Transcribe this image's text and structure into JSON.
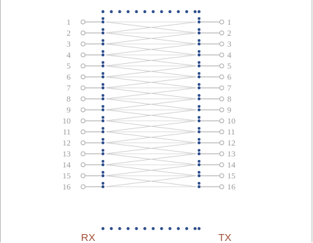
{
  "left_pins": [
    "1",
    "2",
    "3",
    "4",
    "5",
    "6",
    "7",
    "8",
    "9",
    "10",
    "11",
    "12",
    "13",
    "14",
    "15",
    "16"
  ],
  "right_pins": [
    "1",
    "2",
    "3",
    "4",
    "5",
    "6",
    "7",
    "8",
    "9",
    "10",
    "11",
    "12",
    "13",
    "14",
    "15",
    "16"
  ],
  "left_label": "RX",
  "right_label": "TX",
  "colors": {
    "pin_text": "#9a9a9a",
    "lead": "#a6a6a6",
    "dot": "#2e4f8d",
    "wire": "#cfcfcf",
    "label": "#a2513a",
    "frame": "#b9b9b9"
  }
}
